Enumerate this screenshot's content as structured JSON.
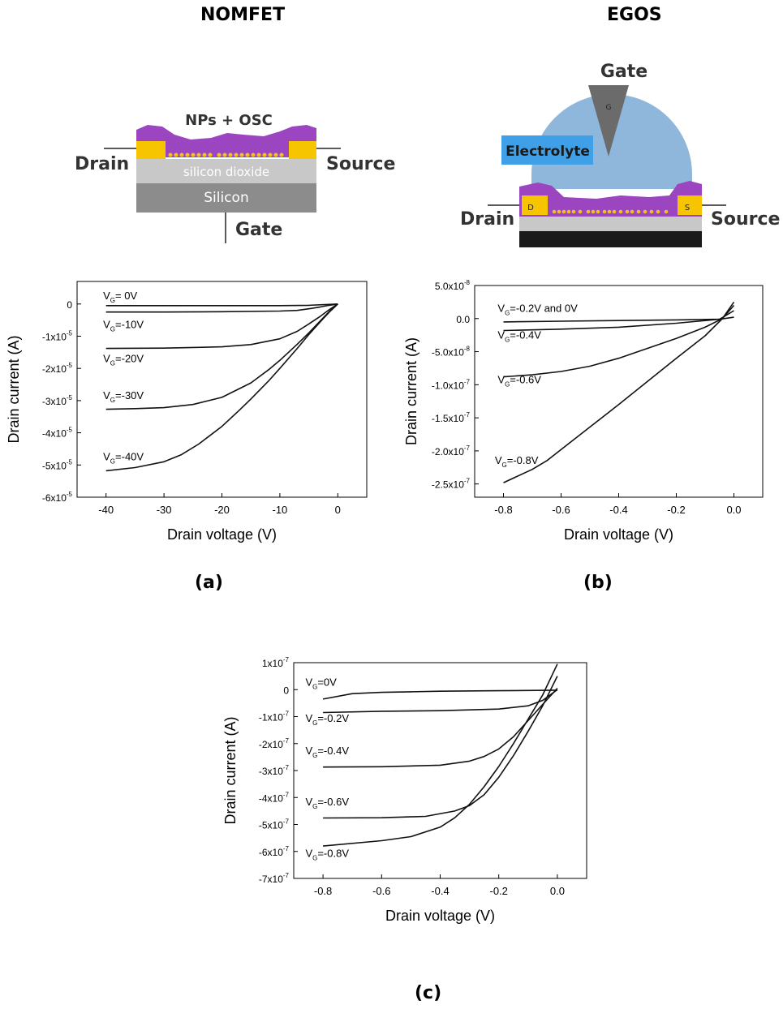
{
  "headers": {
    "left": "NOMFET",
    "right": "EGOS"
  },
  "nomfet_diagram": {
    "np_osc": "NPs + OSC",
    "drain": "Drain",
    "source": "Source",
    "oxide": "silicon dioxide",
    "silicon": "Silicon",
    "gate": "Gate"
  },
  "egos_diagram": {
    "gate": "Gate",
    "gate_mark": "G",
    "electrolyte": "Electrolyte",
    "drain": "Drain",
    "source": "Source",
    "d_mark": "D",
    "s_mark": "S"
  },
  "colors": {
    "purple": "#9b45c0",
    "gold": "#f7c400",
    "electrolyte": "#8fb7dc",
    "label_box": "#3fa0e8",
    "oxide": "#c8c8c8",
    "silicon": "#8c8c8c"
  },
  "chart_data": [
    {
      "panel": "(a)",
      "type": "line",
      "xlabel": "Drain voltage (V)",
      "ylabel": "Drain current (A)",
      "xlim": [
        -45,
        5
      ],
      "ylim": [
        -6e-05,
        7e-06
      ],
      "xticks": [
        {
          "v": -40,
          "t": "-40"
        },
        {
          "v": -30,
          "t": "-30"
        },
        {
          "v": -20,
          "t": "-20"
        },
        {
          "v": -10,
          "t": "-10"
        },
        {
          "v": 0,
          "t": "0"
        }
      ],
      "yticks": [
        {
          "v": 0,
          "m": "0",
          "e": ""
        },
        {
          "v": -1e-05,
          "m": "-1x10",
          "e": "-5"
        },
        {
          "v": -2e-05,
          "m": "-2x10",
          "e": "-5"
        },
        {
          "v": -3e-05,
          "m": "-3x10",
          "e": "-5"
        },
        {
          "v": -4e-05,
          "m": "-4x10",
          "e": "-5"
        },
        {
          "v": -5e-05,
          "m": "-5x10",
          "e": "-5"
        },
        {
          "v": -6e-05,
          "m": "-6x10",
          "e": "-5"
        }
      ],
      "series": [
        {
          "name": "VG=0V",
          "label": {
            "pre": "V",
            "sub": "G",
            "post": "= 0V"
          },
          "lx": -40.5,
          "ly": 1.5e-06,
          "x": [
            -40,
            -30,
            -20,
            -10,
            -5,
            0
          ],
          "y": [
            -5e-07,
            -5e-07,
            -5e-07,
            -5e-07,
            -4e-07,
            0
          ]
        },
        {
          "name": "VG=-10V",
          "label": {
            "pre": "V",
            "sub": "G",
            "post": "=-10V"
          },
          "lx": -40.5,
          "ly": -7.5e-06,
          "x": [
            -40,
            -30,
            -20,
            -10,
            -7,
            -5,
            -3,
            -1.5,
            0
          ],
          "y": [
            -2.5e-06,
            -2.5e-06,
            -2.4e-06,
            -2.2e-06,
            -2e-06,
            -1.5e-06,
            -9e-07,
            -4e-07,
            0
          ]
        },
        {
          "name": "VG=-20V",
          "label": {
            "pre": "V",
            "sub": "G",
            "post": "=-20V"
          },
          "lx": -40.5,
          "ly": -1.8e-05,
          "x": [
            -40,
            -30,
            -20,
            -15,
            -10,
            -7,
            -5,
            -3,
            -1.5,
            0
          ],
          "y": [
            -1.38e-05,
            -1.37e-05,
            -1.33e-05,
            -1.26e-05,
            -1.08e-05,
            -8.5e-06,
            -6.2e-06,
            -3.8e-06,
            -1.8e-06,
            0
          ]
        },
        {
          "name": "VG=-30V",
          "label": {
            "pre": "V",
            "sub": "G",
            "post": "=-30V"
          },
          "lx": -40.5,
          "ly": -2.95e-05,
          "x": [
            -40,
            -35,
            -30,
            -25,
            -20,
            -15,
            -12,
            -10,
            -7,
            -5,
            -3,
            -1.5,
            0
          ],
          "y": [
            -3.27e-05,
            -3.25e-05,
            -3.22e-05,
            -3.12e-05,
            -2.9e-05,
            -2.45e-05,
            -2.05e-05,
            -1.75e-05,
            -1.25e-05,
            -9e-06,
            -5.2e-06,
            -2.4e-06,
            0
          ]
        },
        {
          "name": "VG=-40V",
          "label": {
            "pre": "V",
            "sub": "G",
            "post": "=-40V"
          },
          "lx": -40.5,
          "ly": -4.85e-05,
          "x": [
            -40,
            -35,
            -30,
            -27,
            -24,
            -20,
            -17,
            -15,
            -12,
            -10,
            -7,
            -5,
            -3,
            -1.5,
            0
          ],
          "y": [
            -5.18e-05,
            -5.08e-05,
            -4.9e-05,
            -4.68e-05,
            -4.35e-05,
            -3.8e-05,
            -3.3e-05,
            -2.95e-05,
            -2.4e-05,
            -2e-05,
            -1.38e-05,
            -9.5e-06,
            -5.5e-06,
            -2.6e-06,
            0
          ]
        }
      ]
    },
    {
      "panel": "(b)",
      "type": "line",
      "xlabel": "Drain voltage (V)",
      "ylabel": "Drain current (A)",
      "xlim": [
        -0.9,
        0.1
      ],
      "ylim": [
        -2.7e-07,
        5e-08
      ],
      "xticks": [
        {
          "v": -0.8,
          "t": "-0.8"
        },
        {
          "v": -0.6,
          "t": "-0.6"
        },
        {
          "v": -0.4,
          "t": "-0.4"
        },
        {
          "v": -0.2,
          "t": "-0.2"
        },
        {
          "v": 0.0,
          "t": "0.0"
        }
      ],
      "yticks": [
        {
          "v": 5e-08,
          "m": "5.0x10",
          "e": "-8"
        },
        {
          "v": 0,
          "m": "0.0",
          "e": ""
        },
        {
          "v": -5e-08,
          "m": "-5.0x10",
          "e": "-8"
        },
        {
          "v": -1e-07,
          "m": "-1.0x10",
          "e": "-7"
        },
        {
          "v": -1.5e-07,
          "m": "-1.5x10",
          "e": "-7"
        },
        {
          "v": -2e-07,
          "m": "-2.0x10",
          "e": "-7"
        },
        {
          "v": -2.5e-07,
          "m": "-2.5x10",
          "e": "-7"
        }
      ],
      "series": [
        {
          "name": "VG=-0.2V and 0V",
          "label": {
            "pre": "V",
            "sub": "G",
            "post": "=-0.2V and 0V"
          },
          "lx": -0.82,
          "ly": 1e-08,
          "x": [
            -0.8,
            -0.6,
            -0.4,
            -0.2,
            -0.05,
            0
          ],
          "y": [
            -5e-09,
            -4e-09,
            -3e-09,
            -2e-09,
            -1e-09,
            2e-09
          ]
        },
        {
          "name": "VG=-0.4V",
          "label": {
            "pre": "V",
            "sub": "G",
            "post": "=-0.4V"
          },
          "lx": -0.82,
          "ly": -3e-08,
          "x": [
            -0.8,
            -0.6,
            -0.4,
            -0.2,
            -0.05,
            0
          ],
          "y": [
            -1.8e-08,
            -1.6e-08,
            -1.3e-08,
            -7e-09,
            -1e-09,
            1.2e-08
          ]
        },
        {
          "name": "VG=-0.6V",
          "label": {
            "pre": "V",
            "sub": "G",
            "post": "=-0.6V"
          },
          "lx": -0.82,
          "ly": -9.8e-08,
          "x": [
            -0.8,
            -0.7,
            -0.6,
            -0.5,
            -0.4,
            -0.3,
            -0.2,
            -0.1,
            -0.04,
            0
          ],
          "y": [
            -8.8e-08,
            -8.5e-08,
            -8e-08,
            -7.2e-08,
            -6e-08,
            -4.5e-08,
            -3e-08,
            -1.3e-08,
            0,
            2e-08
          ]
        },
        {
          "name": "VG=-0.8V",
          "label": {
            "pre": "V",
            "sub": "G",
            "post": "=-0.8V"
          },
          "lx": -0.83,
          "ly": -2.2e-07,
          "x": [
            -0.8,
            -0.7,
            -0.65,
            -0.6,
            -0.5,
            -0.4,
            -0.3,
            -0.2,
            -0.1,
            -0.04,
            0
          ],
          "y": [
            -2.48e-07,
            -2.28e-07,
            -2.15e-07,
            -1.98e-07,
            -1.64e-07,
            -1.3e-07,
            -9.5e-08,
            -6e-08,
            -2.6e-08,
            0,
            2.5e-08
          ]
        }
      ]
    },
    {
      "panel": "(c)",
      "type": "line",
      "xlabel": "Drain voltage (V)",
      "ylabel": "Drain current (A)",
      "xlim": [
        -0.9,
        0.1
      ],
      "ylim": [
        -7e-07,
        1e-07
      ],
      "xticks": [
        {
          "v": -0.8,
          "t": "-0.8"
        },
        {
          "v": -0.6,
          "t": "-0.6"
        },
        {
          "v": -0.4,
          "t": "-0.4"
        },
        {
          "v": -0.2,
          "t": "-0.2"
        },
        {
          "v": 0.0,
          "t": "0.0"
        }
      ],
      "yticks": [
        {
          "v": 1e-07,
          "m": "1x10",
          "e": "-7"
        },
        {
          "v": 0,
          "m": "0",
          "e": ""
        },
        {
          "v": -1e-07,
          "m": "-1x10",
          "e": "-7"
        },
        {
          "v": -2e-07,
          "m": "-2x10",
          "e": "-7"
        },
        {
          "v": -3e-07,
          "m": "-3x10",
          "e": "-7"
        },
        {
          "v": -4e-07,
          "m": "-4x10",
          "e": "-7"
        },
        {
          "v": -5e-07,
          "m": "-5x10",
          "e": "-7"
        },
        {
          "v": -6e-07,
          "m": "-6x10",
          "e": "-7"
        },
        {
          "v": -7e-07,
          "m": "-7x10",
          "e": "-7"
        }
      ],
      "series": [
        {
          "name": "VG=0V",
          "label": {
            "pre": "V",
            "sub": "G",
            "post": "=0V"
          },
          "lx": -0.86,
          "ly": 1.5e-08,
          "x": [
            -0.8,
            -0.7,
            -0.6,
            -0.5,
            -0.4,
            -0.2,
            0
          ],
          "y": [
            -3.5e-08,
            -1.5e-08,
            -1e-08,
            -8e-09,
            -6e-09,
            -4e-09,
            -2e-09
          ]
        },
        {
          "name": "VG=-0.2V",
          "label": {
            "pre": "V",
            "sub": "G",
            "post": "=-0.2V"
          },
          "lx": -0.86,
          "ly": -1.2e-07,
          "x": [
            -0.8,
            -0.6,
            -0.4,
            -0.2,
            -0.1,
            -0.05,
            0
          ],
          "y": [
            -8.5e-08,
            -8e-08,
            -7.8e-08,
            -7.2e-08,
            -6e-08,
            -4e-08,
            0
          ]
        },
        {
          "name": "VG=-0.4V",
          "label": {
            "pre": "V",
            "sub": "G",
            "post": "=-0.4V"
          },
          "lx": -0.86,
          "ly": -2.4e-07,
          "x": [
            -0.8,
            -0.6,
            -0.4,
            -0.3,
            -0.25,
            -0.2,
            -0.15,
            -0.1,
            -0.05,
            0
          ],
          "y": [
            -2.87e-07,
            -2.86e-07,
            -2.8e-07,
            -2.65e-07,
            -2.48e-07,
            -2.2e-07,
            -1.75e-07,
            -1.15e-07,
            -5.5e-08,
            5e-09
          ]
        },
        {
          "name": "VG=-0.6V",
          "label": {
            "pre": "V",
            "sub": "G",
            "post": "=-0.6V"
          },
          "lx": -0.86,
          "ly": -4.3e-07,
          "x": [
            -0.8,
            -0.6,
            -0.45,
            -0.35,
            -0.3,
            -0.25,
            -0.2,
            -0.15,
            -0.1,
            -0.05,
            0
          ],
          "y": [
            -4.76e-07,
            -4.75e-07,
            -4.7e-07,
            -4.5e-07,
            -4.3e-07,
            -3.9e-07,
            -3.25e-07,
            -2.45e-07,
            -1.55e-07,
            -6e-08,
            5e-08
          ]
        },
        {
          "name": "VG=-0.8V",
          "label": {
            "pre": "V",
            "sub": "G",
            "post": "=-0.8V"
          },
          "lx": -0.86,
          "ly": -6.2e-07,
          "x": [
            -0.8,
            -0.6,
            -0.5,
            -0.4,
            -0.35,
            -0.3,
            -0.25,
            -0.2,
            -0.15,
            -0.1,
            -0.05,
            0
          ],
          "y": [
            -5.8e-07,
            -5.6e-07,
            -5.45e-07,
            -5.1e-07,
            -4.75e-07,
            -4.25e-07,
            -3.6e-07,
            -2.85e-07,
            -2e-07,
            -1.1e-07,
            -2e-08,
            9.5e-08
          ]
        }
      ]
    }
  ],
  "panel_labels": [
    "(a)",
    "(b)",
    "(c)"
  ]
}
